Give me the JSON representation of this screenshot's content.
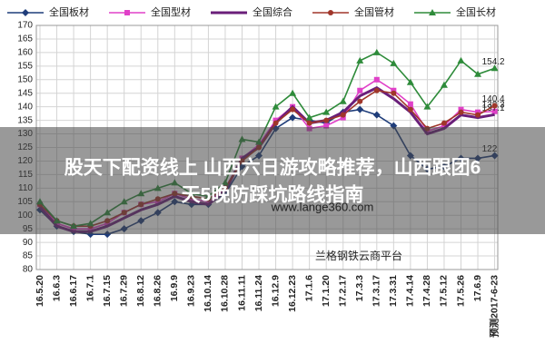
{
  "chart_data": {
    "type": "line",
    "categories": [
      "16.5.20",
      "16.6.3",
      "16.6.17",
      "16.7.1",
      "16.7.15",
      "16.7.29",
      "16.8.12",
      "16.8.26",
      "16.9.9",
      "16.9.23",
      "16.10.14",
      "16.10.28",
      "16.11.11",
      "16.11.24",
      "16.12.9",
      "16.12.23",
      "17.1.6",
      "17.1.20",
      "17.2.17",
      "17.3.3",
      "17.3.17",
      "17.3.31",
      "17.4.14",
      "17.4.28",
      "17.5.12",
      "17.5.26",
      "17.6.9",
      "预测2017-6-23"
    ],
    "series": [
      {
        "name": "全国板材",
        "color": "#1f3d7a",
        "marker": "diamond",
        "values": [
          102,
          96,
          94,
          93,
          93,
          95,
          98,
          101,
          105,
          104,
          104,
          108,
          118,
          122,
          132,
          136,
          135,
          134,
          138,
          139,
          137,
          133,
          122,
          117,
          118,
          121,
          121,
          122
        ]
      },
      {
        "name": "全国型材",
        "color": "#e040c8",
        "marker": "square",
        "values": [
          104,
          97,
          95,
          95,
          97,
          101,
          104,
          105,
          108,
          106,
          105,
          110,
          121,
          126,
          135,
          140,
          132,
          133,
          136,
          146,
          150,
          146,
          141,
          131,
          133,
          139,
          138,
          138.3
        ]
      },
      {
        "name": "全国综合",
        "color": "#6a1f7a",
        "marker": "none",
        "values": [
          103,
          96,
          94,
          94,
          96,
          99,
          102,
          104,
          107,
          105,
          104,
          109,
          121,
          125,
          134,
          140,
          134,
          135,
          138,
          144,
          147,
          143,
          138,
          130,
          132,
          137,
          136,
          137.1
        ]
      },
      {
        "name": "全国管材",
        "color": "#a0362a",
        "marker": "circle",
        "values": [
          104,
          98,
          96,
          96,
          98,
          101,
          104,
          106,
          108,
          107,
          106,
          110,
          120,
          125,
          134,
          139,
          134,
          135,
          137,
          142,
          146,
          145,
          139,
          132,
          134,
          138,
          137,
          140.4
        ]
      },
      {
        "name": "全国长材",
        "color": "#2e8b3a",
        "marker": "triangle",
        "values": [
          105,
          98,
          96,
          97,
          101,
          105,
          108,
          110,
          112,
          108,
          107,
          112,
          128,
          127,
          140,
          145,
          136,
          138,
          142,
          157,
          160,
          156,
          149,
          140,
          148,
          157,
          152,
          154.2
        ]
      }
    ],
    "ylim": [
      80,
      170
    ],
    "yticks": [
      80,
      85,
      90,
      95,
      100,
      105,
      110,
      115,
      120,
      125,
      130,
      135,
      140,
      145,
      150,
      155,
      160,
      165,
      170
    ],
    "grid": true
  },
  "overlay": {
    "title_lines": [
      "股天下配资线上 山西六日游攻略推荐，山西跟团6",
      "天5晚防踩坑路线指南"
    ],
    "watermark": "www.lange360.com",
    "platform": "兰格钢铁云商平台"
  }
}
